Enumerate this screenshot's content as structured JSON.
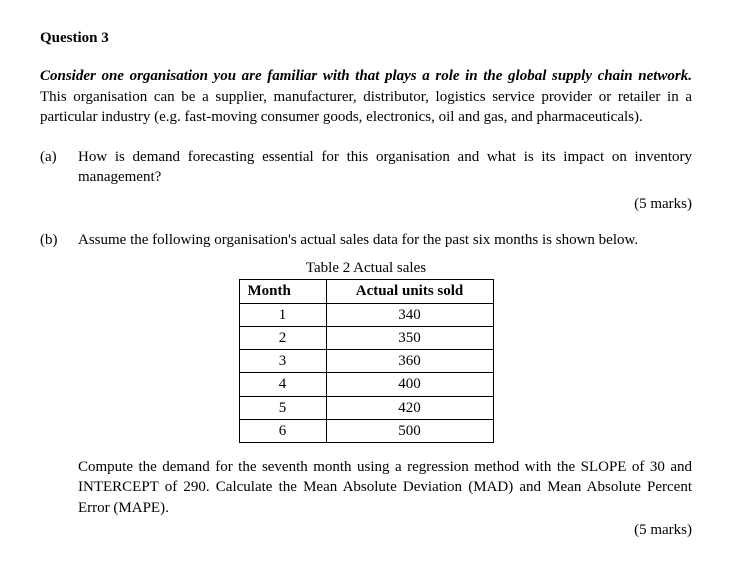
{
  "question": {
    "title": "Question 3",
    "intro_lead": "Consider one organisation you are familiar with that plays a role in the global supply chain network.",
    "intro_rest": " This organisation can be a supplier, manufacturer, distributor, logistics service provider or retailer in a particular industry (e.g. fast-moving consumer goods, electronics, oil and gas, and pharmaceuticals).",
    "parts": {
      "a": {
        "label": "(a)",
        "text": "How is demand forecasting essential for this organisation and what is its impact on inventory management?",
        "marks": "(5 marks)"
      },
      "b": {
        "label": "(b)",
        "text": "Assume the following organisation's actual sales data for the past six months is shown below.",
        "table_caption": "Table 2 Actual sales",
        "columns": [
          "Month",
          "Actual units sold"
        ],
        "rows": [
          {
            "month": "1",
            "units": "340"
          },
          {
            "month": "2",
            "units": "350"
          },
          {
            "month": "3",
            "units": "360"
          },
          {
            "month": "4",
            "units": "400"
          },
          {
            "month": "5",
            "units": "420"
          },
          {
            "month": "6",
            "units": "500"
          }
        ],
        "after_table": "Compute the demand for the seventh month using a regression method with the SLOPE of 30 and INTERCEPT of 290. Calculate the Mean Absolute Deviation (MAD) and Mean Absolute Percent Error (MAPE).",
        "marks": "(5 marks)"
      }
    }
  }
}
